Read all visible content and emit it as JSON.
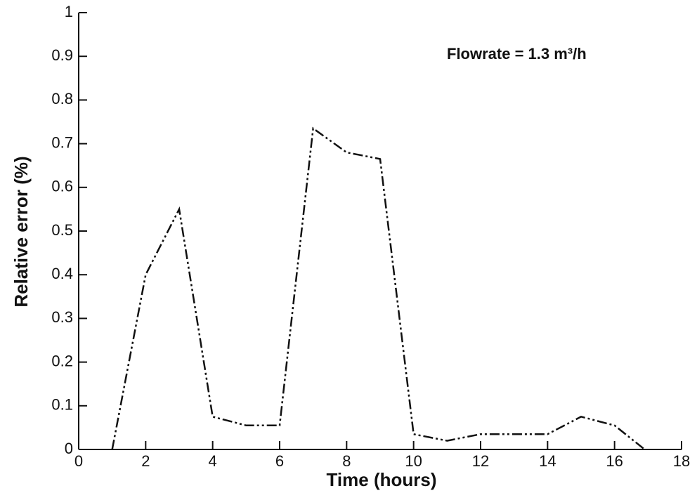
{
  "chart_data": {
    "type": "line",
    "x_label": "Time (hours)",
    "y_label": "Relative error  (%)",
    "annotation": "Flowrate = 1.3 m³/h",
    "x": [
      1,
      2,
      3,
      4,
      5,
      6,
      7,
      8,
      9,
      10,
      11,
      12,
      13,
      14,
      15,
      16,
      16.9
    ],
    "series": [
      {
        "color": "#111111",
        "values": [
          0,
          0.4,
          0.55,
          0.075,
          0.055,
          0.055,
          0.735,
          0.68,
          0.665,
          0.035,
          0.02,
          0.035,
          0.035,
          0.035,
          0.075,
          0.055,
          0
        ]
      }
    ],
    "xlim": [
      0,
      18
    ],
    "xticks": [
      0,
      2,
      4,
      6,
      8,
      10,
      12,
      14,
      16,
      18
    ],
    "ylim": [
      0,
      1
    ],
    "yticks": [
      0,
      0.1,
      0.2,
      0.3,
      0.4,
      0.5,
      0.6,
      0.7,
      0.8,
      0.9,
      1
    ],
    "line_style": "dash-dot-dot",
    "grid": false
  }
}
